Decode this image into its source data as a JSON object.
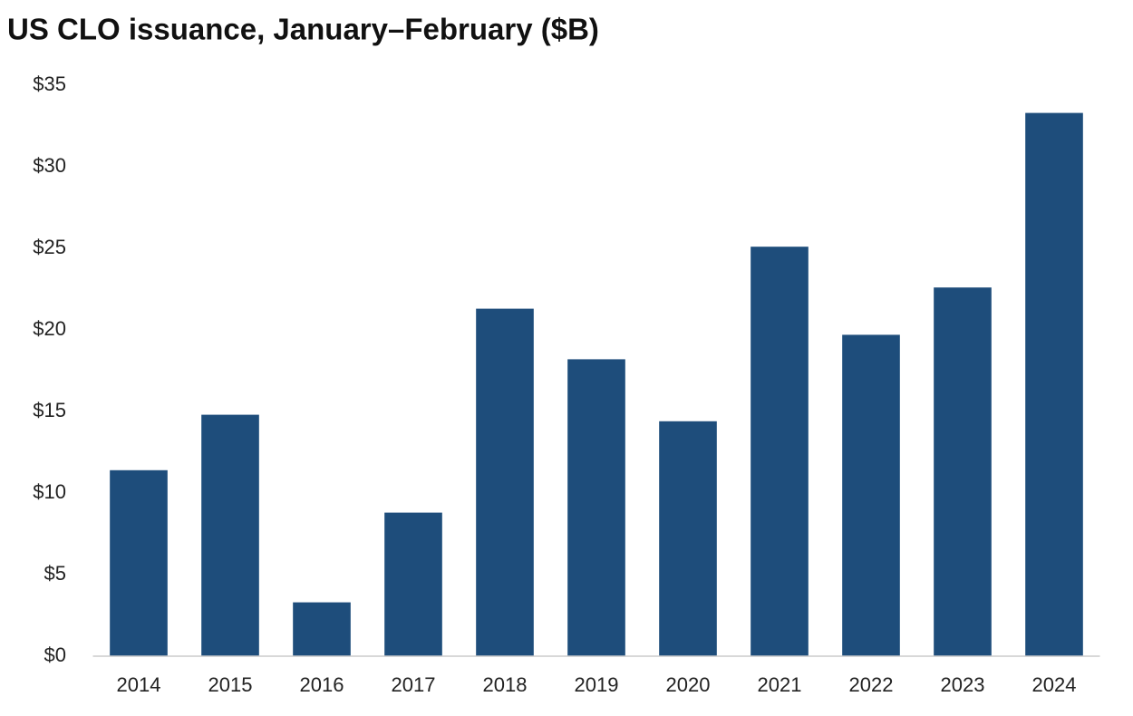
{
  "chart_data": {
    "type": "bar",
    "title": "US CLO issuance, January–February ($B)",
    "categories": [
      "2014",
      "2015",
      "2016",
      "2017",
      "2018",
      "2019",
      "2020",
      "2021",
      "2022",
      "2023",
      "2024"
    ],
    "values": [
      11.4,
      14.8,
      3.3,
      8.8,
      21.3,
      18.2,
      14.4,
      25.1,
      19.7,
      22.6,
      33.3
    ],
    "color": "#1e4d7b",
    "ylim": [
      0,
      35
    ],
    "yticks": [
      {
        "value": 0,
        "label": "$0"
      },
      {
        "value": 5,
        "label": "$5"
      },
      {
        "value": 10,
        "label": "$10"
      },
      {
        "value": 15,
        "label": "$15"
      },
      {
        "value": 20,
        "label": "$20"
      },
      {
        "value": 25,
        "label": "$25"
      },
      {
        "value": 30,
        "label": "$30"
      },
      {
        "value": 35,
        "label": "$35"
      }
    ],
    "grid": false
  }
}
